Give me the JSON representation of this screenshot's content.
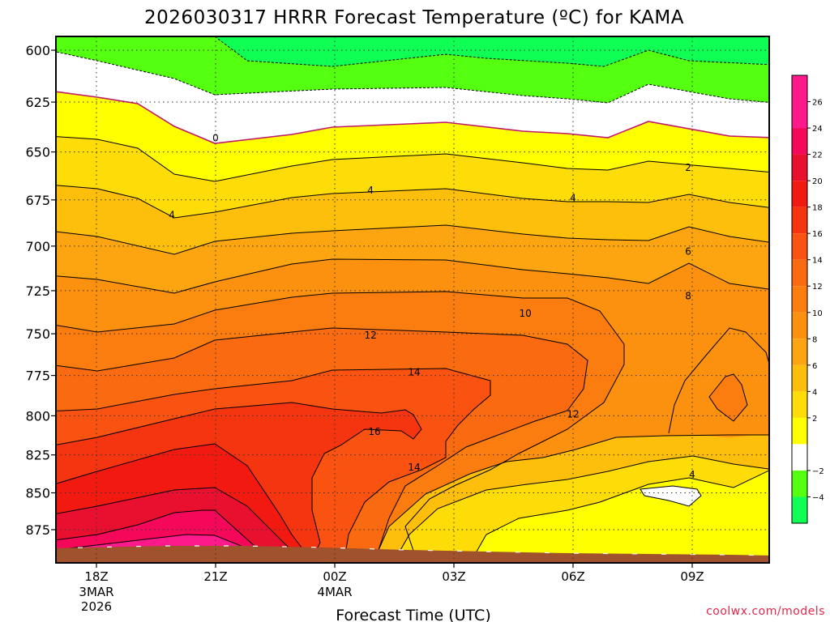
{
  "title": "2026030317 HRRR Forecast Temperature (ºC) for KAMA",
  "credit": "coolwx.com/models",
  "chart_data": {
    "type": "heatmap",
    "title": "2026030317 HRRR Forecast Temperature (ºC) for KAMA",
    "xlabel": "Forecast Time (UTC)",
    "ylabel": "",
    "y_scale": "log",
    "ylim": [
      595,
      890
    ],
    "yticks": [
      600,
      625,
      650,
      675,
      700,
      725,
      750,
      775,
      800,
      825,
      850,
      875
    ],
    "xticks": [
      {
        "hour": 18,
        "label": "18Z",
        "sub": [
          "3MAR",
          "2026"
        ]
      },
      {
        "hour": 21,
        "label": "21Z",
        "sub": []
      },
      {
        "hour": 24,
        "label": "00Z",
        "sub": [
          "4MAR"
        ]
      },
      {
        "hour": 27,
        "label": "03Z",
        "sub": []
      },
      {
        "hour": 30,
        "label": "06Z",
        "sub": []
      },
      {
        "hour": 33,
        "label": "09Z",
        "sub": []
      }
    ],
    "xlim": [
      17,
      35
    ],
    "grid": true,
    "colorbar": {
      "ticks": [
        26,
        24,
        22,
        20,
        18,
        16,
        14,
        12,
        10,
        8,
        6,
        4,
        2,
        -2,
        -4
      ],
      "bands": [
        {
          "lo": 24,
          "hi": 28,
          "color": "#ff1a8c"
        },
        {
          "lo": 22,
          "hi": 24,
          "color": "#f5075a"
        },
        {
          "lo": 20,
          "hi": 22,
          "color": "#e8102e"
        },
        {
          "lo": 18,
          "hi": 20,
          "color": "#f21a10"
        },
        {
          "lo": 16,
          "hi": 18,
          "color": "#f53510"
        },
        {
          "lo": 14,
          "hi": 16,
          "color": "#fa5210"
        },
        {
          "lo": 12,
          "hi": 14,
          "color": "#fa6a10"
        },
        {
          "lo": 10,
          "hi": 12,
          "color": "#fb7d10"
        },
        {
          "lo": 8,
          "hi": 10,
          "color": "#fc9110"
        },
        {
          "lo": 6,
          "hi": 8,
          "color": "#fda510"
        },
        {
          "lo": 4,
          "hi": 6,
          "color": "#fdbf0c"
        },
        {
          "lo": 2,
          "hi": 4,
          "color": "#fedc08"
        },
        {
          "lo": 0,
          "hi": 2,
          "color": "#ffff00"
        },
        {
          "lo": -2,
          "hi": 0,
          "color": "#ffffff"
        },
        {
          "lo": -4,
          "hi": -2,
          "color": "#55ff10"
        },
        {
          "lo": -6,
          "hi": -4,
          "color": "#10ff55"
        }
      ]
    },
    "temperature_bands": [
      {
        "name": "-6..-4",
        "color": "#10ff55",
        "lo": -6
      },
      {
        "name": "-4..-2",
        "color": "#55ff10",
        "lo": -4
      },
      {
        "name": "-2..0",
        "color": "#ffffff",
        "lo": -2
      },
      {
        "name": "0..2",
        "color": "#ffff00",
        "lo": 0
      },
      {
        "name": "2..4",
        "color": "#fedc08",
        "lo": 2
      },
      {
        "name": "4..6",
        "color": "#fdbf0c",
        "lo": 4
      },
      {
        "name": "6..8",
        "color": "#fda510",
        "lo": 6
      },
      {
        "name": "8..10",
        "color": "#fc9110",
        "lo": 8
      },
      {
        "name": "10..12",
        "color": "#fb7d10",
        "lo": 10
      },
      {
        "name": "12..14",
        "color": "#fa6a10",
        "lo": 12
      },
      {
        "name": "14..16",
        "color": "#fa5210",
        "lo": 14
      },
      {
        "name": "16..18",
        "color": "#f53510",
        "lo": 16
      },
      {
        "name": "18..20",
        "color": "#f21a10",
        "lo": 18
      },
      {
        "name": "20..22",
        "color": "#e8102e",
        "lo": 20
      },
      {
        "name": "22..24",
        "color": "#f5075a",
        "lo": 22
      }
    ],
    "contour_labels": [
      {
        "text": "0",
        "hour": 21.0,
        "p": 643
      },
      {
        "text": "2",
        "hour": 32.9,
        "p": 658
      },
      {
        "text": "4",
        "hour": 19.9,
        "p": 683
      },
      {
        "text": "4",
        "hour": 24.9,
        "p": 670
      },
      {
        "text": "4",
        "hour": 30.0,
        "p": 674
      },
      {
        "text": "6",
        "hour": 32.9,
        "p": 703
      },
      {
        "text": "8",
        "hour": 32.9,
        "p": 728
      },
      {
        "text": "10",
        "hour": 28.8,
        "p": 738
      },
      {
        "text": "12",
        "hour": 24.9,
        "p": 751
      },
      {
        "text": "12",
        "hour": 30.0,
        "p": 799
      },
      {
        "text": "14",
        "hour": 26.0,
        "p": 773
      },
      {
        "text": "14",
        "hour": 26.0,
        "p": 833
      },
      {
        "text": "16",
        "hour": 25.0,
        "p": 810
      },
      {
        "text": "4",
        "hour": 33.0,
        "p": 838
      }
    ]
  }
}
